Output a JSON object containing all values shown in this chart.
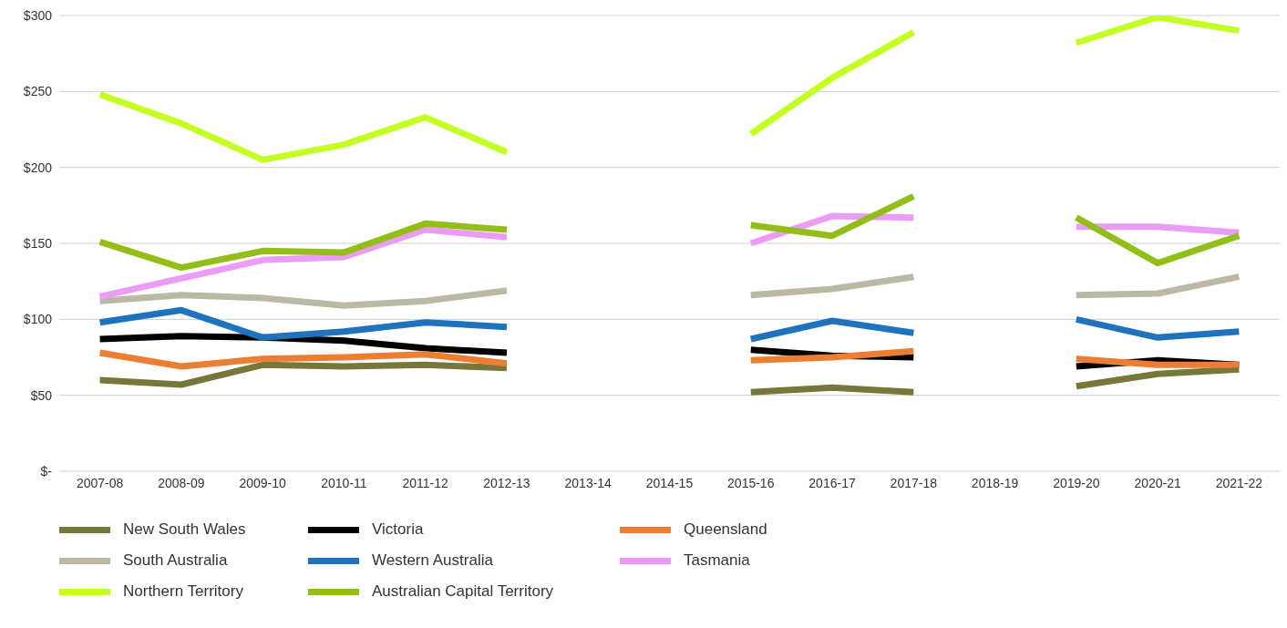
{
  "chart_data": {
    "type": "line",
    "categories": [
      "2007-08",
      "2008-09",
      "2009-10",
      "2010-11",
      "2011-12",
      "2012-13",
      "2013-14",
      "2014-15",
      "2015-16",
      "2016-17",
      "2017-18",
      "2018-19",
      "2019-20",
      "2020-21",
      "2021-22"
    ],
    "ylim": [
      0,
      300
    ],
    "yticks": [
      {
        "value": 0,
        "label": "$-"
      },
      {
        "value": 50,
        "label": "$50"
      },
      {
        "value": 100,
        "label": "$100"
      },
      {
        "value": 150,
        "label": "$150"
      },
      {
        "value": 200,
        "label": "$200"
      },
      {
        "value": 250,
        "label": "$250"
      },
      {
        "value": 300,
        "label": "$300"
      }
    ],
    "grid": "y",
    "legend": "bottom",
    "marker": "none",
    "line_style": "solid",
    "series": [
      {
        "name": "New South Wales",
        "color": "#77773a",
        "values": [
          60,
          57,
          70,
          69,
          70,
          68,
          null,
          null,
          52,
          55,
          52,
          null,
          56,
          64,
          67
        ]
      },
      {
        "name": "Victoria",
        "color": "#000000",
        "values": [
          87,
          89,
          88,
          86,
          81,
          78,
          null,
          null,
          80,
          76,
          75,
          null,
          69,
          73,
          70
        ]
      },
      {
        "name": "Queensland",
        "color": "#ed7d31",
        "values": [
          78,
          69,
          74,
          75,
          77,
          71,
          null,
          null,
          73,
          75,
          79,
          null,
          74,
          70,
          70
        ]
      },
      {
        "name": "South Australia",
        "color": "#bbb8a4",
        "values": [
          112,
          116,
          114,
          109,
          112,
          119,
          null,
          null,
          116,
          120,
          128,
          null,
          116,
          117,
          128
        ]
      },
      {
        "name": "Western Australia",
        "color": "#1f72be",
        "values": [
          98,
          106,
          88,
          92,
          98,
          95,
          null,
          null,
          87,
          99,
          91,
          null,
          100,
          88,
          92
        ]
      },
      {
        "name": "Tasmania",
        "color": "#eb9cf7",
        "values": [
          115,
          127,
          139,
          141,
          159,
          154,
          null,
          null,
          150,
          168,
          167,
          null,
          161,
          161,
          157
        ]
      },
      {
        "name": "Northern Territory",
        "color": "#c4ff22",
        "values": [
          248,
          229,
          205,
          215,
          233,
          210,
          null,
          null,
          222,
          259,
          289,
          null,
          282,
          299,
          290
        ]
      },
      {
        "name": "Australian Capital Territory",
        "color": "#92be17",
        "values": [
          151,
          134,
          145,
          144,
          163,
          159,
          null,
          null,
          162,
          155,
          181,
          null,
          167,
          137,
          155
        ]
      }
    ]
  }
}
